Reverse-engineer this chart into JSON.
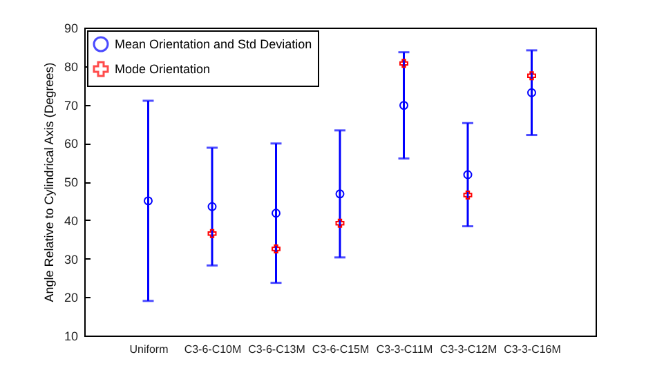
{
  "chart_data": {
    "type": "scatter",
    "ylabel": "Angle Relative to Cylindrical Axis (Degrees)",
    "categories": [
      "Uniform",
      "C3-6-C10M",
      "C3-6-C13M",
      "C3-6-C15M",
      "C3-3-C11M",
      "C3-3-C12M",
      "C3-3-C16M"
    ],
    "series": [
      {
        "name": "Mean Orientation and Std Deviation",
        "color": "#0000ff",
        "marker": "circle",
        "values": [
          45,
          43.5,
          41.8,
          46.8,
          69.8,
          51.8,
          73.1
        ],
        "errors": [
          26,
          15.3,
          18.1,
          16.5,
          13.8,
          13.4,
          11.0
        ]
      },
      {
        "name": "Mode Orientation",
        "color": "#ff0000",
        "marker": "cross",
        "values": [
          null,
          36.5,
          32.5,
          39.2,
          80.7,
          46.5,
          77.5
        ]
      }
    ],
    "ylim": [
      10,
      90
    ],
    "yticks": [
      10,
      20,
      30,
      40,
      50,
      60,
      70,
      80,
      90
    ],
    "grid": false,
    "legend": "top left"
  }
}
